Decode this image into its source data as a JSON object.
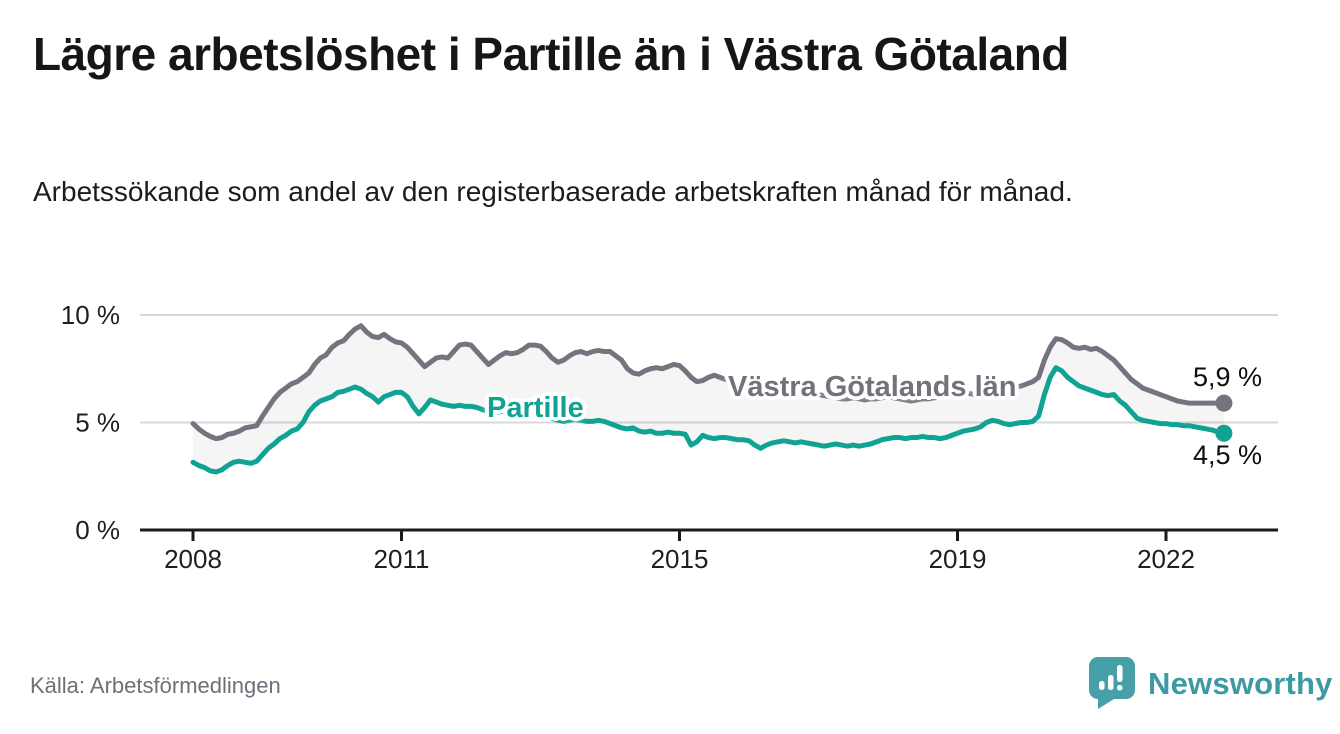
{
  "header": {
    "title": "Lägre arbetslöshet i Partille än i Västra Götaland",
    "subtitle": "Arbetssökande som andel av den registerbaserade arbetskraften månad för månad."
  },
  "footer": {
    "source": "Källa: Arbetsförmedlingen",
    "brand": "Newsworthy",
    "brand_icon": "newsworthy-speech-bubble-bar-chart-icon"
  },
  "colors": {
    "partille_line": "#10a394",
    "vgr_line": "#77737e",
    "band_fill": "rgba(25,25,35,0.045)",
    "gridline": "#d8d8d8",
    "axis": "#1a1a1a",
    "tick_label": "#1f1f22",
    "brand_teal": "#47a0a8"
  },
  "chart_data": {
    "type": "line",
    "x_start": "2008-01",
    "x_step_months": 1,
    "x_end": "2022-11",
    "ylim": [
      0,
      10
    ],
    "grid": "horizontal",
    "yticks": [
      {
        "value": 0,
        "label": "0 %"
      },
      {
        "value": 5,
        "label": "5 %"
      },
      {
        "value": 10,
        "label": "10 %"
      }
    ],
    "xticks": [
      {
        "value": 2008,
        "label": "2008"
      },
      {
        "value": 2011,
        "label": "2011"
      },
      {
        "value": 2015,
        "label": "2015"
      },
      {
        "value": 2019,
        "label": "2019"
      },
      {
        "value": 2022,
        "label": "2022"
      }
    ],
    "fill_between_series": true,
    "series": [
      {
        "name": "Västra Götalands län",
        "color": "#77737e",
        "end_label": "5,9 %",
        "end_value": 5.9,
        "values": [
          4.95,
          4.7,
          4.5,
          4.35,
          4.25,
          4.3,
          4.45,
          4.5,
          4.6,
          4.75,
          4.8,
          4.85,
          5.3,
          5.7,
          6.1,
          6.4,
          6.6,
          6.8,
          6.9,
          7.1,
          7.3,
          7.7,
          8.0,
          8.15,
          8.5,
          8.7,
          8.8,
          9.1,
          9.35,
          9.5,
          9.2,
          9.0,
          8.95,
          9.1,
          8.9,
          8.75,
          8.7,
          8.5,
          8.2,
          7.9,
          7.6,
          7.8,
          8.0,
          8.05,
          8.0,
          8.3,
          8.6,
          8.65,
          8.6,
          8.3,
          8.0,
          7.7,
          7.9,
          8.1,
          8.25,
          8.2,
          8.25,
          8.4,
          8.6,
          8.6,
          8.55,
          8.3,
          8.0,
          7.8,
          7.9,
          8.1,
          8.25,
          8.3,
          8.2,
          8.3,
          8.35,
          8.3,
          8.3,
          8.1,
          7.9,
          7.5,
          7.3,
          7.25,
          7.4,
          7.5,
          7.55,
          7.5,
          7.6,
          7.7,
          7.65,
          7.4,
          7.1,
          6.9,
          6.95,
          7.1,
          7.2,
          7.1,
          7.0,
          6.95,
          6.9,
          6.9,
          6.85,
          6.75,
          6.65,
          6.6,
          6.55,
          6.5,
          6.55,
          6.5,
          6.45,
          6.4,
          6.35,
          6.35,
          6.3,
          6.25,
          6.2,
          6.15,
          6.1,
          6.1,
          6.15,
          6.1,
          6.05,
          6.1,
          6.1,
          6.15,
          6.2,
          6.15,
          6.1,
          6.05,
          6.0,
          6.05,
          6.1,
          6.1,
          6.15,
          6.2,
          6.25,
          6.35,
          6.4,
          6.4,
          6.35,
          6.3,
          6.35,
          6.4,
          6.5,
          6.5,
          6.55,
          6.6,
          6.65,
          6.7,
          6.8,
          6.9,
          7.1,
          7.9,
          8.5,
          8.9,
          8.85,
          8.7,
          8.5,
          8.45,
          8.5,
          8.4,
          8.45,
          8.3,
          8.1,
          7.9,
          7.6,
          7.3,
          7.0,
          6.8,
          6.6,
          6.5,
          6.4,
          6.3,
          6.2,
          6.1,
          6.0,
          5.95,
          5.9,
          5.9,
          5.9,
          5.9,
          5.9,
          5.9,
          5.9
        ]
      },
      {
        "name": "Partille",
        "color": "#10a394",
        "end_label": "4,5 %",
        "end_value": 4.5,
        "values": [
          3.15,
          3.0,
          2.9,
          2.75,
          2.7,
          2.8,
          3.0,
          3.15,
          3.2,
          3.15,
          3.1,
          3.2,
          3.5,
          3.8,
          4.0,
          4.25,
          4.4,
          4.6,
          4.7,
          5.0,
          5.5,
          5.8,
          6.0,
          6.1,
          6.2,
          6.4,
          6.45,
          6.55,
          6.65,
          6.55,
          6.35,
          6.2,
          5.95,
          6.2,
          6.3,
          6.4,
          6.4,
          6.2,
          5.75,
          5.4,
          5.7,
          6.05,
          5.95,
          5.85,
          5.8,
          5.75,
          5.8,
          5.75,
          5.75,
          5.7,
          5.6,
          5.5,
          5.45,
          5.5,
          5.55,
          5.5,
          5.45,
          5.4,
          5.45,
          5.4,
          5.35,
          5.3,
          5.2,
          5.1,
          5.05,
          5.1,
          5.15,
          5.1,
          5.05,
          5.05,
          5.1,
          5.05,
          4.95,
          4.85,
          4.75,
          4.7,
          4.75,
          4.6,
          4.55,
          4.6,
          4.5,
          4.5,
          4.55,
          4.5,
          4.5,
          4.45,
          3.95,
          4.1,
          4.4,
          4.3,
          4.25,
          4.3,
          4.3,
          4.25,
          4.2,
          4.2,
          4.15,
          3.95,
          3.8,
          3.95,
          4.05,
          4.1,
          4.15,
          4.1,
          4.05,
          4.1,
          4.05,
          4.0,
          3.95,
          3.9,
          3.95,
          4.0,
          3.95,
          3.9,
          3.95,
          3.9,
          3.95,
          4.0,
          4.1,
          4.2,
          4.25,
          4.3,
          4.3,
          4.25,
          4.3,
          4.3,
          4.35,
          4.3,
          4.3,
          4.25,
          4.3,
          4.4,
          4.5,
          4.6,
          4.65,
          4.7,
          4.8,
          5.0,
          5.1,
          5.05,
          4.95,
          4.9,
          4.95,
          5.0,
          5.0,
          5.05,
          5.3,
          6.3,
          7.1,
          7.55,
          7.4,
          7.1,
          6.9,
          6.7,
          6.6,
          6.5,
          6.4,
          6.3,
          6.25,
          6.3,
          6.0,
          5.8,
          5.5,
          5.2,
          5.1,
          5.05,
          5.0,
          4.95,
          4.95,
          4.9,
          4.9,
          4.85,
          4.85,
          4.8,
          4.75,
          4.7,
          4.65,
          4.55,
          4.5
        ]
      }
    ]
  }
}
